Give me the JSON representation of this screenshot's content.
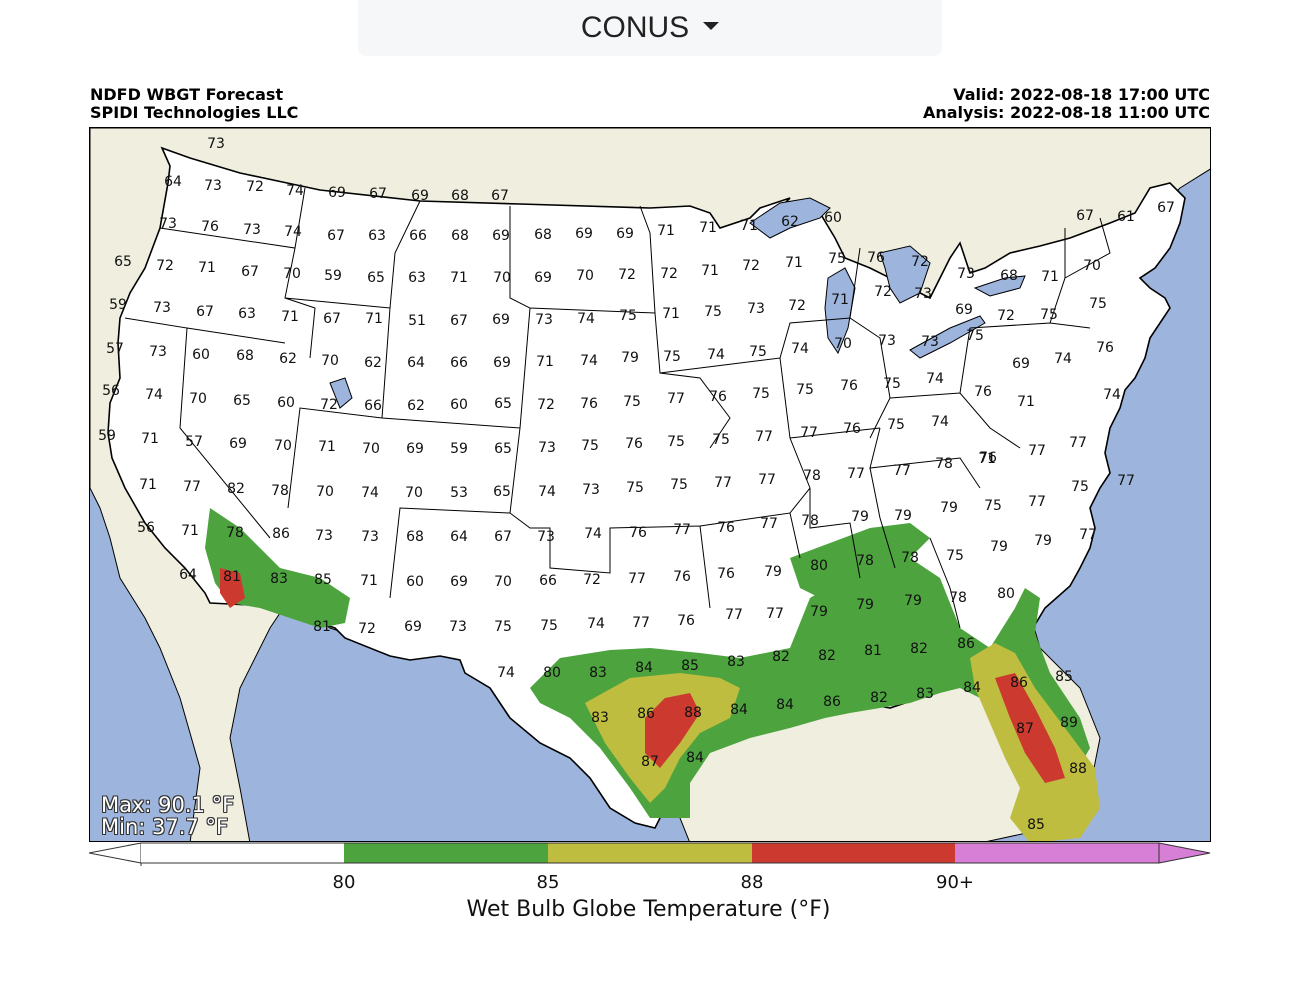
{
  "region_selector": {
    "label": "CONUS"
  },
  "header": {
    "title": "NDFD WBGT Forecast",
    "org": "SPIDI Technologies LLC",
    "valid": "Valid: 2022-08-18 17:00 UTC",
    "analysis": "Analysis: 2022-08-18 11:00 UTC"
  },
  "stats": {
    "max": "Max: 90.1 °F",
    "min": "Min: 37.7 °F"
  },
  "colors": {
    "ocean": "#9db4dc",
    "land_outside": "#efeedf",
    "land_us": "#ffffff",
    "band_80_85": "#4da43f",
    "band_85_88": "#bfbd3f",
    "band_88_90": "#cc3a2f",
    "band_90_plus": "#d77fd6"
  },
  "colorbar": {
    "title": "Wet Bulb Globe Temperature (°F)",
    "ticks": [
      "80",
      "85",
      "88",
      "90+"
    ]
  },
  "map_values": [
    "73",
    "64",
    "73",
    "72",
    "74",
    "69",
    "67",
    "69",
    "68",
    "67",
    "73",
    "76",
    "73",
    "74",
    "67",
    "63",
    "66",
    "68",
    "69",
    "68",
    "69",
    "69",
    "71",
    "71",
    "71",
    "62",
    "60",
    "67",
    "61",
    "67",
    "65",
    "72",
    "71",
    "67",
    "70",
    "59",
    "65",
    "63",
    "71",
    "70",
    "69",
    "70",
    "72",
    "72",
    "71",
    "72",
    "71",
    "75",
    "76",
    "72",
    "73",
    "68",
    "71",
    "70",
    "59",
    "73",
    "67",
    "63",
    "71",
    "67",
    "71",
    "51",
    "67",
    "69",
    "73",
    "74",
    "75",
    "71",
    "75",
    "73",
    "72",
    "71",
    "72",
    "73",
    "69",
    "72",
    "75",
    "75",
    "57",
    "73",
    "60",
    "68",
    "62",
    "70",
    "62",
    "64",
    "66",
    "69",
    "71",
    "74",
    "79",
    "75",
    "74",
    "75",
    "74",
    "70",
    "73",
    "73",
    "75",
    "69",
    "74",
    "76",
    "56",
    "74",
    "70",
    "65",
    "60",
    "72",
    "66",
    "62",
    "60",
    "65",
    "72",
    "76",
    "75",
    "77",
    "76",
    "75",
    "75",
    "76",
    "75",
    "74",
    "76",
    "71",
    "74",
    "59",
    "71",
    "57",
    "69",
    "70",
    "71",
    "70",
    "69",
    "59",
    "65",
    "73",
    "75",
    "76",
    "75",
    "75",
    "77",
    "77",
    "76",
    "75",
    "74",
    "76",
    "77",
    "71",
    "77",
    "82",
    "78",
    "70",
    "74",
    "70",
    "53",
    "65",
    "74",
    "73",
    "75",
    "75",
    "77",
    "77",
    "78",
    "77",
    "77",
    "78",
    "71",
    "77",
    "75",
    "77",
    "56",
    "71",
    "78",
    "86",
    "73",
    "73",
    "68",
    "64",
    "67",
    "73",
    "74",
    "76",
    "77",
    "76",
    "77",
    "78",
    "79",
    "79",
    "79",
    "75",
    "77",
    "77",
    "64",
    "81",
    "83",
    "85",
    "71",
    "60",
    "69",
    "70",
    "66",
    "72",
    "77",
    "76",
    "76",
    "79",
    "80",
    "78",
    "78",
    "75",
    "79",
    "79",
    "81",
    "72",
    "69",
    "73",
    "75",
    "75",
    "74",
    "77",
    "76",
    "77",
    "77",
    "79",
    "79",
    "79",
    "78",
    "80",
    "74",
    "80",
    "83",
    "84",
    "85",
    "83",
    "82",
    "82",
    "81",
    "82",
    "86",
    "83",
    "86",
    "88",
    "84",
    "84",
    "86",
    "82",
    "83",
    "84",
    "86",
    "85",
    "87",
    "84",
    "87",
    "89",
    "88",
    "85"
  ]
}
